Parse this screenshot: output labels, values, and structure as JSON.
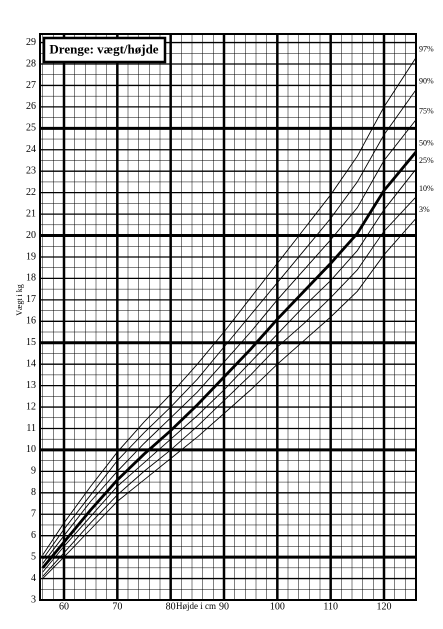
{
  "chart_data": {
    "type": "line",
    "title": "Drenge: vægt/højde",
    "x_label": "Højde i cm",
    "y_label": "Vægt i kg",
    "x": [
      56,
      60,
      65,
      70,
      75,
      80,
      85,
      90,
      95,
      100,
      105,
      110,
      115,
      120,
      126
    ],
    "series": [
      {
        "name": "3%",
        "color": "#000000",
        "values": [
          4.0,
          5.0,
          6.3,
          7.6,
          8.6,
          9.6,
          10.6,
          11.7,
          12.8,
          14.0,
          15.1,
          16.2,
          17.4,
          19.1,
          20.8
        ]
      },
      {
        "name": "10%",
        "color": "#000000",
        "values": [
          4.1,
          5.2,
          6.6,
          7.9,
          9.0,
          10.0,
          11.1,
          12.3,
          13.5,
          14.8,
          15.9,
          17.1,
          18.4,
          20.2,
          21.8
        ]
      },
      {
        "name": "25%",
        "color": "#000000",
        "values": [
          4.3,
          5.5,
          6.9,
          8.3,
          9.4,
          10.5,
          11.6,
          12.8,
          14.1,
          15.4,
          16.7,
          17.9,
          19.3,
          21.2,
          23.1
        ]
      },
      {
        "name": "50%",
        "color": "#000000",
        "values": [
          4.5,
          5.7,
          7.2,
          8.6,
          9.8,
          10.9,
          12.1,
          13.4,
          14.7,
          16.1,
          17.4,
          18.7,
          20.1,
          22.1,
          23.9
        ]
      },
      {
        "name": "75%",
        "color": "#000000",
        "values": [
          4.7,
          6.0,
          7.6,
          9.0,
          10.3,
          11.5,
          12.7,
          14.1,
          15.5,
          17.0,
          18.4,
          19.8,
          21.3,
          23.5,
          25.4
        ]
      },
      {
        "name": "90%",
        "color": "#000000",
        "values": [
          4.9,
          6.3,
          7.9,
          9.5,
          10.8,
          12.0,
          13.3,
          14.8,
          16.3,
          17.8,
          19.3,
          20.8,
          22.5,
          24.7,
          26.8
        ]
      },
      {
        "name": "97%",
        "color": "#000000",
        "values": [
          5.1,
          6.6,
          8.3,
          9.9,
          11.3,
          12.6,
          14.0,
          15.5,
          17.1,
          18.7,
          20.3,
          21.9,
          23.7,
          26.0,
          28.3
        ]
      }
    ],
    "xlim": [
      55.5,
      126
    ],
    "ylim": [
      3,
      29.4
    ],
    "xticks": [
      60,
      70,
      80,
      90,
      100,
      110,
      120
    ],
    "yticks": [
      3,
      4,
      5,
      6,
      7,
      8,
      9,
      10,
      11,
      12,
      13,
      14,
      15,
      16,
      17,
      18,
      19,
      20,
      21,
      22,
      23,
      24,
      25,
      26,
      27,
      28,
      29
    ],
    "minor_grid": {
      "x": 2,
      "y": 0.5
    },
    "grid": true
  }
}
